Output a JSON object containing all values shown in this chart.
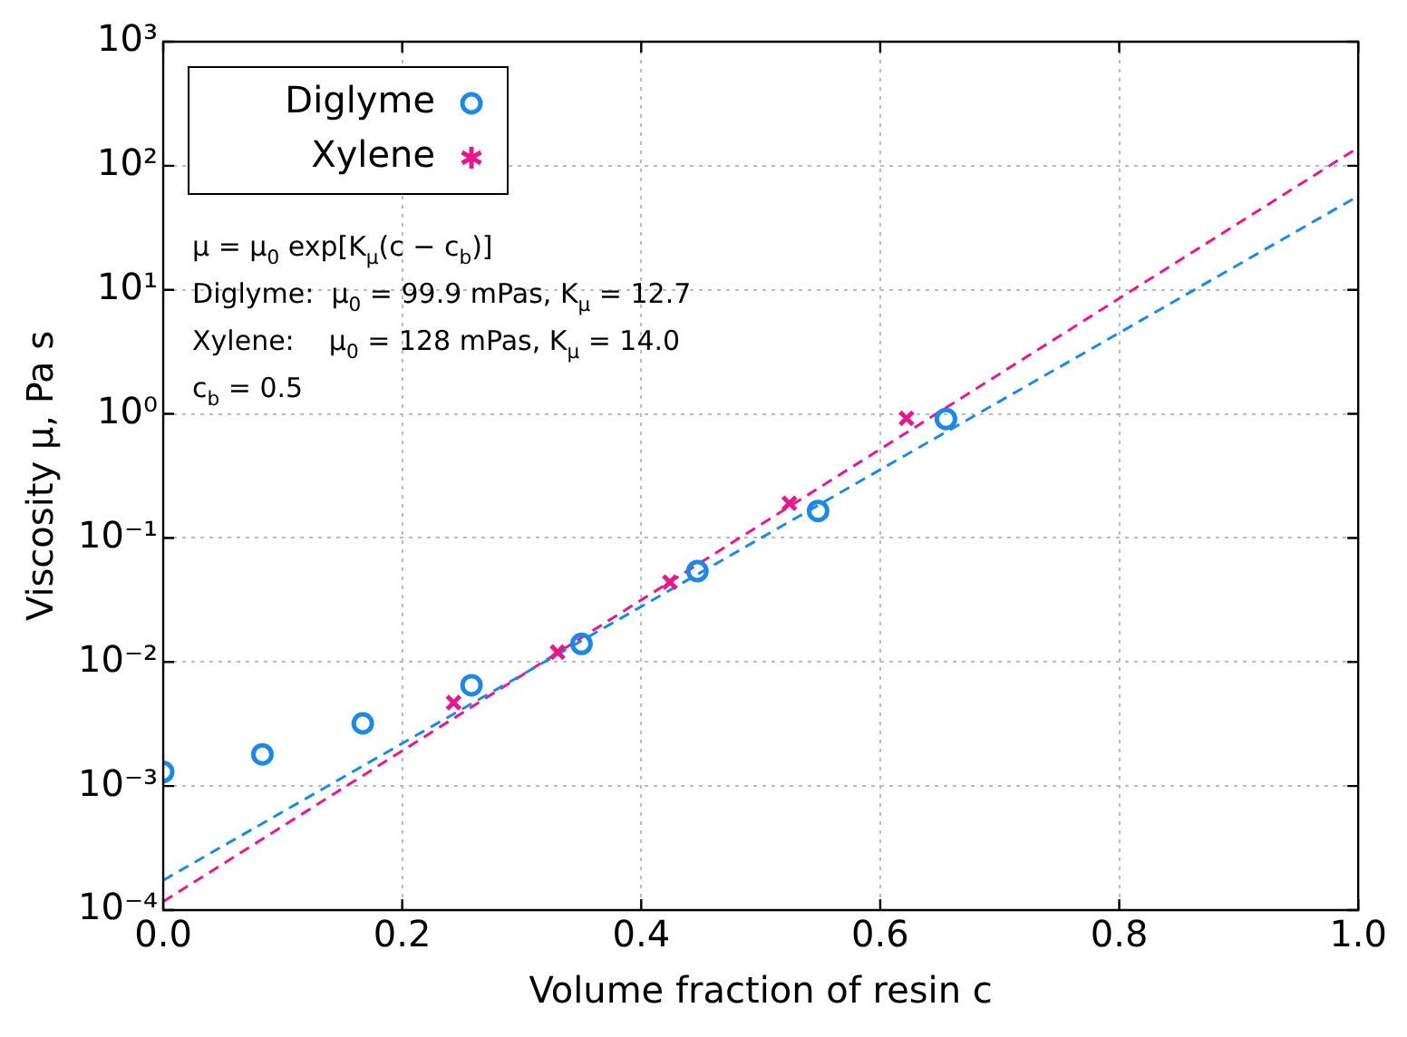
{
  "chart_data": {
    "type": "scatter",
    "xlabel": "Volume fraction of resin c",
    "ylabel": "Viscosity μ, Pa s",
    "log": "y",
    "grid": true,
    "legend": "top left",
    "xlim": [
      0,
      1
    ],
    "xticks": [
      {
        "value": 0,
        "label": "0.0"
      },
      0.2,
      0.4,
      0.6,
      0.8,
      {
        "value": 1,
        "label": "1.0"
      }
    ],
    "ylim": [
      0.0001,
      1000
    ],
    "yticks": [
      {
        "value": 0.0001,
        "label": "10⁻⁴"
      },
      {
        "value": 0.001,
        "label": "10⁻³"
      },
      {
        "value": 0.01,
        "label": "10⁻²"
      },
      {
        "value": 0.1,
        "label": "10⁻¹"
      },
      {
        "value": 1,
        "label": "10⁰"
      },
      {
        "value": 10,
        "label": "10¹"
      },
      {
        "value": 100,
        "label": "10²"
      },
      {
        "value": 1000,
        "label": "10³"
      }
    ],
    "series": [
      {
        "name": "Diglyme",
        "marker": "circle",
        "color": "#1e88e5",
        "x": [
          0,
          0.083,
          0.167,
          0.258,
          0.35,
          0.447,
          0.548,
          0.655
        ],
        "values": [
          0.0013,
          0.0018,
          0.0032,
          0.0065,
          0.014,
          0.054,
          0.165,
          0.91
        ]
      },
      {
        "name": "Xylene",
        "marker": "cross",
        "color": "#e6198c",
        "x": [
          0.243,
          0.33,
          0.424,
          0.524,
          0.622
        ],
        "values": [
          0.0047,
          0.012,
          0.044,
          0.19,
          0.92
        ]
      },
      {
        "type": "line",
        "line_style": "dashed",
        "marker": "none",
        "color": "#1e88e5",
        "x": [
          0,
          1
        ],
        "values": [
          0.000174,
          57
        ]
      },
      {
        "type": "line",
        "line_style": "dashed",
        "marker": "none",
        "color": "#e6198c",
        "x": [
          0,
          1
        ],
        "values": [
          0.000117,
          140
        ]
      }
    ],
    "annotations": [
      "μ = μ$_{0}$ exp[K$_{μ}$(c − c$_{b}$)]",
      "Diglyme:  μ$_{0}$ = 99.9 mPas, K$_{μ}$ = 12.7",
      "Xylene:    μ$_{0}$ = 128 mPas, K$_{μ}$ = 14.0",
      "c$_{b}$ = 0.5"
    ]
  }
}
